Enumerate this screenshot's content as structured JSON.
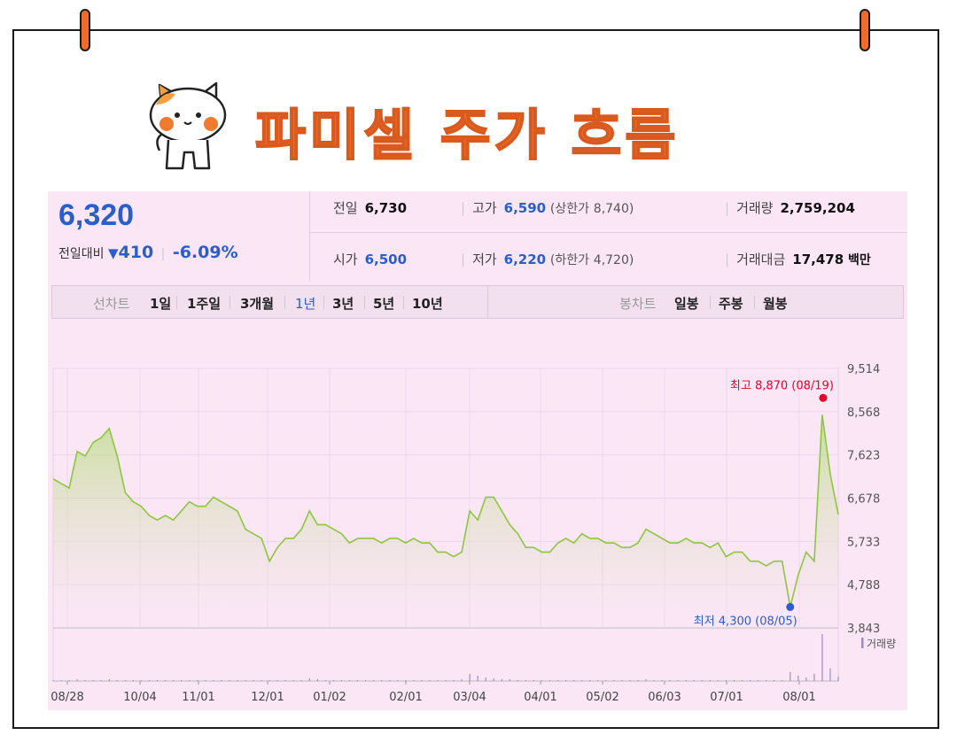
{
  "title": "파미셀 주가 흐름",
  "quote": {
    "price": "6,320",
    "change_label": "전일대비",
    "change_amount": "410",
    "change_pct": "-6.09%",
    "prev_close_label": "전일",
    "prev_close": "6,730",
    "high_label": "고가",
    "high": "6,590",
    "upper_limit_label": "(상한가",
    "upper_limit": "8,740)",
    "volume_label": "거래량",
    "volume": "2,759,204",
    "open_label": "시가",
    "open": "6,500",
    "low_label": "저가",
    "low": "6,220",
    "lower_limit_label": "(하한가",
    "lower_limit": "4,720)",
    "amount_label": "거래대금",
    "amount": "17,478",
    "amount_unit": "백만"
  },
  "tabs": {
    "line_label": "선차트",
    "periods": [
      "1일",
      "1주일",
      "3개월",
      "1년",
      "3년",
      "5년",
      "10년"
    ],
    "active_period": "1년",
    "candle_label": "봉차트",
    "candles": [
      "일봉",
      "주봉",
      "월봉"
    ]
  },
  "colors": {
    "line": "#8dc63f",
    "fill_top": "#b5dc7d",
    "up": "#e4002b",
    "down": "#2a5ec9",
    "volume": "#9a8ad0"
  },
  "chart_data": {
    "type": "area",
    "title": "",
    "xlabel": "",
    "ylabel": "",
    "ylim": [
      3843,
      9514
    ],
    "y_ticks": [
      "9,514",
      "8,568",
      "7,623",
      "6,678",
      "5,733",
      "4,788",
      "3,843"
    ],
    "x_ticks": [
      "08/28",
      "10/04",
      "11/01",
      "12/01",
      "01/02",
      "02/01",
      "03/04",
      "04/01",
      "05/02",
      "06/03",
      "07/01",
      "08/01"
    ],
    "grid": true,
    "series": [
      {
        "values": [
          7100,
          7000,
          6900,
          7700,
          7600,
          7900,
          8000,
          8200,
          7600,
          6800,
          6600,
          6500,
          6300,
          6200,
          6300,
          6200,
          6400,
          6600,
          6500,
          6500,
          6700,
          6600,
          6500,
          6400,
          6000,
          5900,
          5800,
          5300,
          5600,
          5800,
          5800,
          6000,
          6400,
          6100,
          6100,
          6000,
          5900,
          5700,
          5800,
          5800,
          5800,
          5700,
          5800,
          5800,
          5700,
          5800,
          5700,
          5700,
          5500,
          5500,
          5400,
          5500,
          6400,
          6200,
          6700,
          6700,
          6400,
          6100,
          5900,
          5600,
          5600,
          5500,
          5500,
          5700,
          5800,
          5700,
          5900,
          5800,
          5800,
          5700,
          5700,
          5600,
          5600,
          5700,
          6000,
          5900,
          5800,
          5700,
          5700,
          5800,
          5700,
          5700,
          5600,
          5700,
          5400,
          5500,
          5500,
          5300,
          5300,
          5200,
          5300,
          5300,
          4300,
          5000,
          5500,
          5300,
          8500,
          7200,
          6320
        ]
      }
    ],
    "max_annotation": {
      "label": "최고",
      "value": "8,870",
      "date": "(08/19)",
      "y": 8870
    },
    "min_annotation": {
      "label": "최저",
      "value": "4,300",
      "date": "(08/05)",
      "y": 4300
    },
    "volume_label": "거래량",
    "volume": [
      1,
      1,
      1,
      2,
      1,
      1,
      1,
      2,
      1,
      1,
      1,
      1,
      1,
      1,
      1,
      1,
      1,
      1,
      1,
      1,
      1,
      1,
      1,
      1,
      1,
      1,
      1,
      1,
      1,
      1,
      1,
      1,
      3,
      2,
      1,
      1,
      1,
      1,
      1,
      1,
      1,
      1,
      1,
      1,
      1,
      1,
      1,
      1,
      1,
      1,
      1,
      2,
      8,
      6,
      4,
      3,
      2,
      2,
      1,
      1,
      1,
      1,
      1,
      1,
      1,
      1,
      1,
      1,
      1,
      1,
      1,
      1,
      1,
      1,
      2,
      1,
      1,
      1,
      1,
      1,
      1,
      1,
      1,
      1,
      1,
      1,
      1,
      1,
      1,
      1,
      1,
      1,
      10,
      6,
      4,
      8,
      52,
      14,
      5
    ]
  }
}
